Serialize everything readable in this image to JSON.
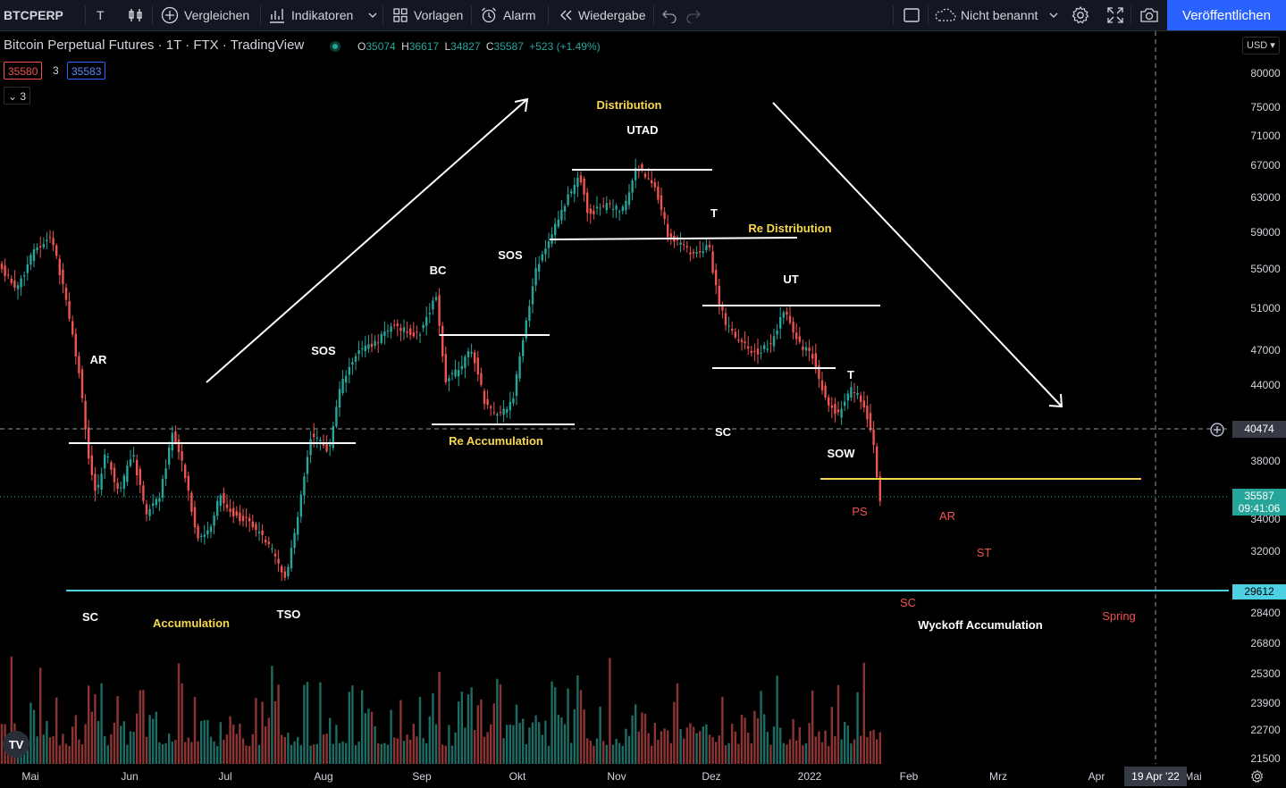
{
  "toolbar": {
    "symbol": "BTCPERP",
    "interval_icon": "T",
    "compare_label": "Vergleichen",
    "indicators_label": "Indikatoren",
    "templates_label": "Vorlagen",
    "alert_label": "Alarm",
    "replay_label": "Wiedergabe",
    "layout_name": "Nicht benannt",
    "publish_label": "Veröffentlichen"
  },
  "legend": {
    "title": "Bitcoin Perpetual Futures · 1T · FTX · TradingView",
    "o_label": "O",
    "o_value": "35074",
    "h_label": "H",
    "h_value": "36617",
    "l_label": "L",
    "l_value": "34827",
    "c_label": "C",
    "c_value": "35587",
    "change": "+523 (+1.49%)",
    "sell_price": "35580",
    "spread": "3",
    "buy_price": "35583",
    "indicator_count": "3"
  },
  "currency": "USD",
  "price_axis": {
    "ticks": [
      "80000",
      "75000",
      "71000",
      "67000",
      "63000",
      "59000",
      "55000",
      "51000",
      "47000",
      "44000",
      "38000",
      "34000",
      "32000",
      "28400",
      "26800",
      "25300",
      "23900",
      "22700",
      "21500"
    ],
    "crosshair_price": "40474",
    "last_price": "35587",
    "countdown": "09:41:06",
    "support_price": "29612"
  },
  "time_axis": {
    "ticks": [
      "Mai",
      "Jun",
      "Jul",
      "Aug",
      "Sep",
      "Okt",
      "Nov",
      "Dez",
      "2022",
      "Feb",
      "Mrz",
      "Apr",
      "Mai"
    ],
    "crosshair_date": "19 Apr '22"
  },
  "annotations": {
    "white": [
      "AR",
      "SC",
      "TSO",
      "SOS",
      "BC",
      "SOS",
      "UTAD",
      "T",
      "UT",
      "SC",
      "T",
      "SOW",
      "Wyckoff Accumulation"
    ],
    "yellow": [
      "Accumulation",
      "Re Accumulation",
      "Distribution",
      "Re Distribution"
    ],
    "red": [
      "PS",
      "AR",
      "ST",
      "SC",
      "Spring"
    ]
  },
  "colors": {
    "up": "#26a69a",
    "down": "#ef5350",
    "accent": "#2962ff",
    "yellow_label": "#f6d94e",
    "support_line": "#4dd0e1",
    "last_price_bg": "#26a69a"
  }
}
